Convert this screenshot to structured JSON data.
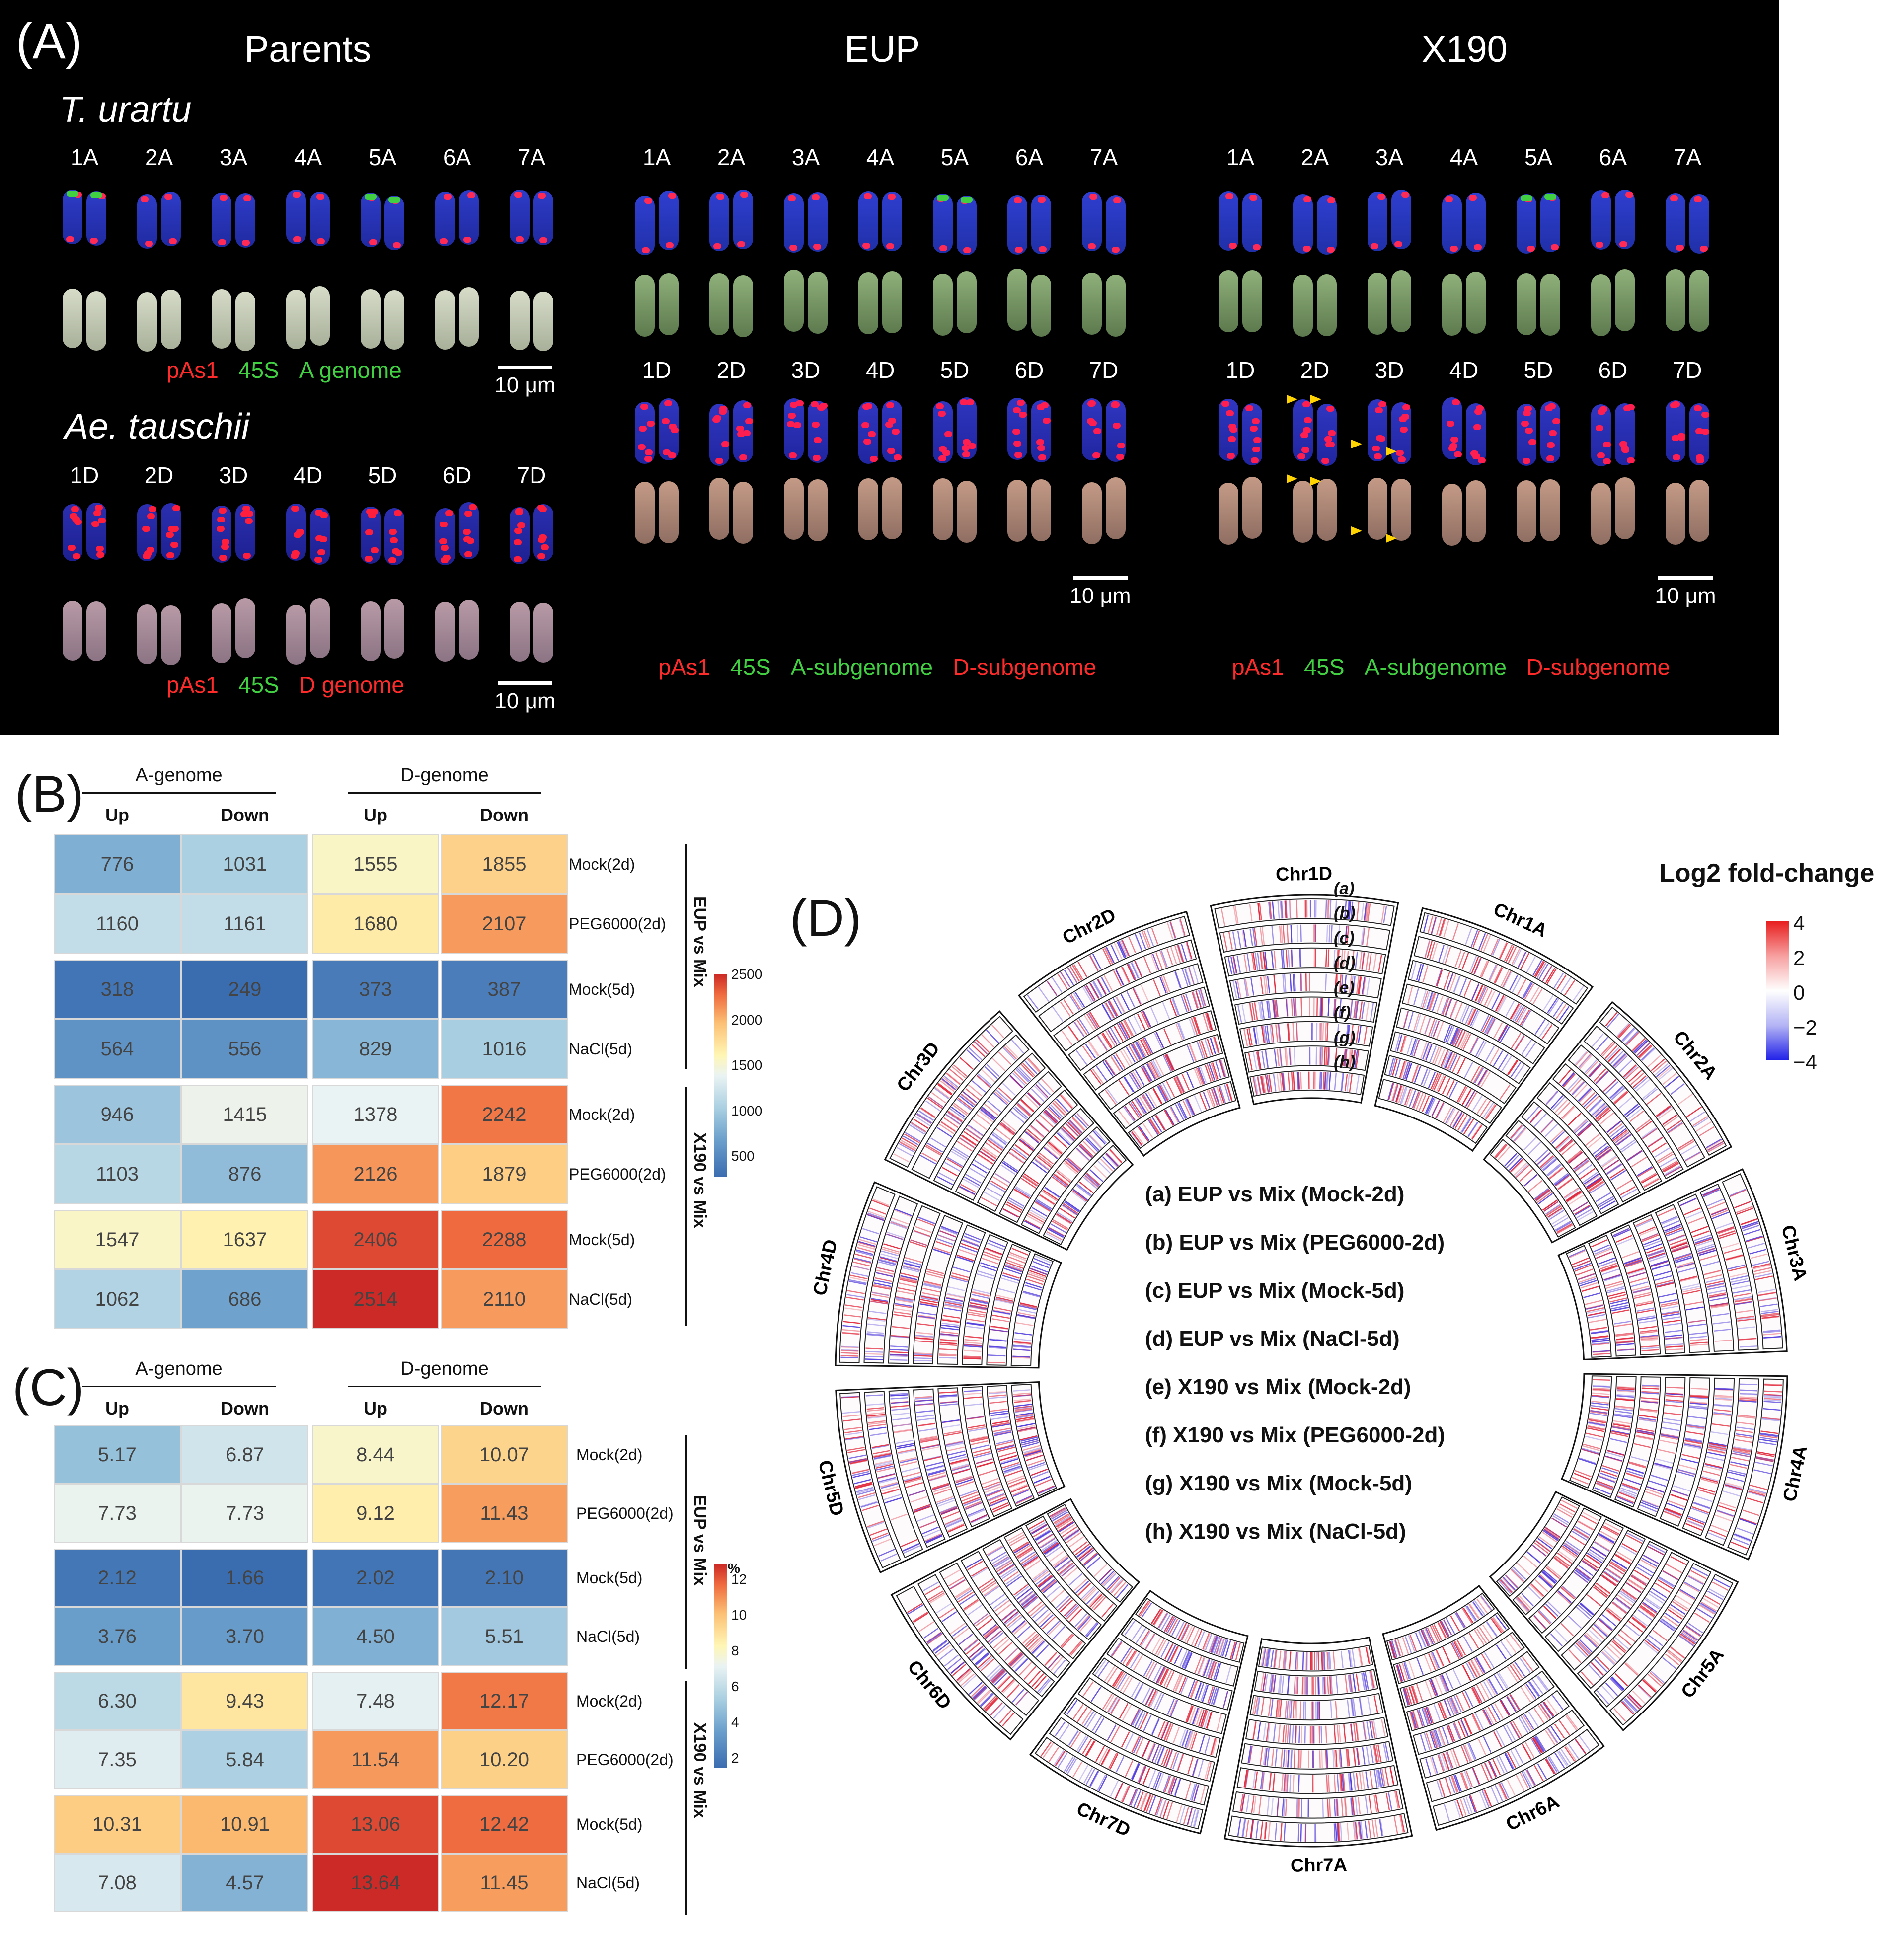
{
  "panel_a": {
    "letter": "(A)",
    "titles": {
      "parents": "Parents",
      "eup": "EUP",
      "x190": "X190"
    },
    "species": {
      "urartu": "T. urartu",
      "tauschii": "Ae. tauschii"
    },
    "chr_a": [
      "1A",
      "2A",
      "3A",
      "4A",
      "5A",
      "6A",
      "7A"
    ],
    "chr_d": [
      "1D",
      "2D",
      "3D",
      "4D",
      "5D",
      "6D",
      "7D"
    ],
    "legend_urartu": {
      "pas1": "pAs1",
      "s45": "45S",
      "genome": "A genome"
    },
    "legend_tauschii": {
      "pas1": "pAs1",
      "s45": "45S",
      "genome": "D genome"
    },
    "legend_eup": {
      "pas1": "pAs1",
      "s45": "45S",
      "asub": "A-subgenome",
      "dsub": "D-subgenome"
    },
    "legend_x190": {
      "pas1": "pAs1",
      "s45": "45S",
      "asub": "A-subgenome",
      "dsub": "D-subgenome"
    },
    "scale": "10 μm",
    "colors": {
      "pas1": "#ff2a2a",
      "s45": "#41d041",
      "agenome": "#41d041",
      "dgenome": "#ff2a2a"
    }
  },
  "panel_b": {
    "letter": "(B)",
    "group_a": "A-genome",
    "group_d": "D-genome",
    "cols": [
      "Up",
      "Down",
      "Up",
      "Down"
    ],
    "rows": [
      {
        "label": "Mock(2d)",
        "values": [
          "776",
          "1031",
          "1555",
          "1855"
        ]
      },
      {
        "label": "PEG6000(2d)",
        "values": [
          "1160",
          "1161",
          "1680",
          "2107"
        ]
      },
      {
        "label": "Mock(5d)",
        "values": [
          "318",
          "249",
          "373",
          "387"
        ]
      },
      {
        "label": "NaCl(5d)",
        "values": [
          "564",
          "556",
          "829",
          "1016"
        ]
      },
      {
        "label": "Mock(2d)",
        "values": [
          "946",
          "1415",
          "1378",
          "2242"
        ]
      },
      {
        "label": "PEG6000(2d)",
        "values": [
          "1103",
          "876",
          "2126",
          "1879"
        ]
      },
      {
        "label": "Mock(5d)",
        "values": [
          "1547",
          "1637",
          "2406",
          "2288"
        ]
      },
      {
        "label": "NaCl(5d)",
        "values": [
          "1062",
          "686",
          "2514",
          "2110"
        ]
      }
    ],
    "side_labels": [
      "EUP vs Mix",
      "X190 vs Mix"
    ],
    "colorbar": {
      "unit": "",
      "ticks": [
        "2500",
        "2000",
        "1500",
        "1000",
        "500"
      ]
    }
  },
  "panel_c": {
    "letter": "(C)",
    "group_a": "A-genome",
    "group_d": "D-genome",
    "cols": [
      "Up",
      "Down",
      "Up",
      "Down"
    ],
    "rows": [
      {
        "label": "Mock(2d)",
        "values": [
          "5.17",
          "6.87",
          "8.44",
          "10.07"
        ]
      },
      {
        "label": "PEG6000(2d)",
        "values": [
          "7.73",
          "7.73",
          "9.12",
          "11.43"
        ]
      },
      {
        "label": "Mock(5d)",
        "values": [
          "2.12",
          "1.66",
          "2.02",
          "2.10"
        ]
      },
      {
        "label": "NaCl(5d)",
        "values": [
          "3.76",
          "3.70",
          "4.50",
          "5.51"
        ]
      },
      {
        "label": "Mock(2d)",
        "values": [
          "6.30",
          "9.43",
          "7.48",
          "12.17"
        ]
      },
      {
        "label": "PEG6000(2d)",
        "values": [
          "7.35",
          "5.84",
          "11.54",
          "10.20"
        ]
      },
      {
        "label": "Mock(5d)",
        "values": [
          "10.31",
          "10.91",
          "13.06",
          "12.42"
        ]
      },
      {
        "label": "NaCl(5d)",
        "values": [
          "7.08",
          "4.57",
          "13.64",
          "11.45"
        ]
      }
    ],
    "side_labels": [
      "EUP vs Mix",
      "X190 vs Mix"
    ],
    "colorbar": {
      "unit": "%",
      "ticks": [
        "12",
        "10",
        "8",
        "6",
        "4",
        "2"
      ]
    }
  },
  "panel_d": {
    "letter": "(D)",
    "legend_title": "Log2 fold-change",
    "legend_ticks": [
      "4",
      "2",
      "0",
      "−2",
      "−4"
    ],
    "track_letters": [
      "(a)",
      "(b)",
      "(c)",
      "(d)",
      "(e)",
      "(f)",
      "(g)",
      "(h)"
    ],
    "comparisons": [
      "(a) EUP vs Mix (Mock-2d)",
      "(b) EUP vs Mix (PEG6000-2d)",
      "(c) EUP vs Mix (Mock-5d)",
      "(d) EUP vs Mix (NaCl-5d)",
      "(e) X190 vs Mix (Mock-2d)",
      "(f) X190 vs Mix (PEG6000-2d)",
      "(g) X190 vs Mix (Mock-5d)",
      "(h) X190 vs Mix (NaCl-5d)"
    ],
    "chromosomes": [
      "Chr1A",
      "Chr2A",
      "Chr3A",
      "Chr4A",
      "Chr5A",
      "Chr6A",
      "Chr7A",
      "Chr7D",
      "Chr6D",
      "Chr5D",
      "Chr4D",
      "Chr3D",
      "Chr2D",
      "Chr1D"
    ]
  }
}
